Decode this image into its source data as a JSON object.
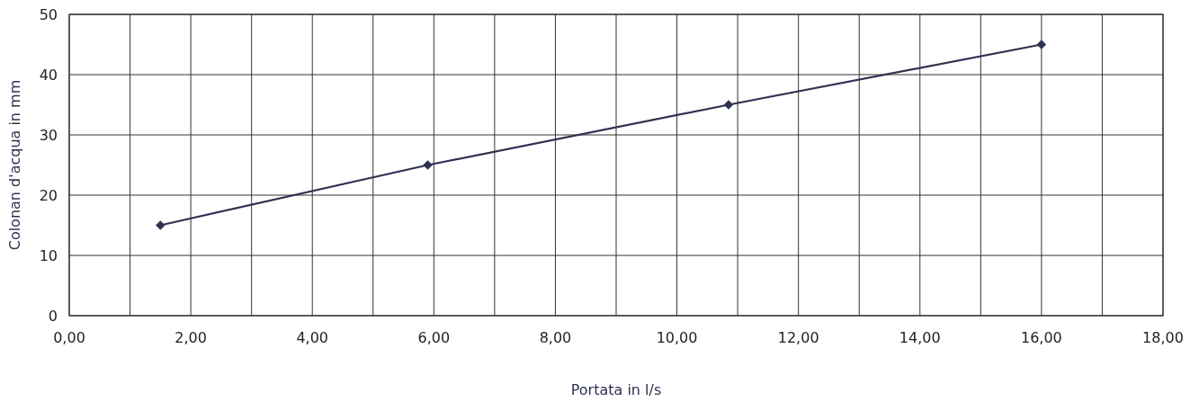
{
  "chart_data": {
    "type": "line",
    "xlabel": "Portata in l/s",
    "ylabel": "Colonan d'acqua in mm",
    "series": [
      {
        "color": "#2e3250",
        "x": [
          1.5,
          5.9,
          10.85,
          16
        ],
        "values": [
          15,
          25,
          35,
          45
        ]
      }
    ],
    "xlim": [
      0,
      18
    ],
    "ylim": [
      0,
      50
    ],
    "xticks": [
      {
        "value": 0,
        "label": "0,00"
      },
      {
        "value": 1,
        "label": null
      },
      {
        "value": 2,
        "label": "2,00"
      },
      {
        "value": 3,
        "label": null
      },
      {
        "value": 4,
        "label": "4,00"
      },
      {
        "value": 5,
        "label": null
      },
      {
        "value": 6,
        "label": "6,00"
      },
      {
        "value": 7,
        "label": null
      },
      {
        "value": 8,
        "label": "8,00"
      },
      {
        "value": 9,
        "label": null
      },
      {
        "value": 10,
        "label": "10,00"
      },
      {
        "value": 11,
        "label": null
      },
      {
        "value": 12,
        "label": "12,00"
      },
      {
        "value": 13,
        "label": null
      },
      {
        "value": 14,
        "label": "14,00"
      },
      {
        "value": 15,
        "label": null
      },
      {
        "value": 16,
        "label": "16,00"
      },
      {
        "value": 17,
        "label": null
      },
      {
        "value": 18,
        "label": "18,00"
      }
    ],
    "yticks": [
      0,
      10,
      20,
      30,
      40,
      50
    ],
    "grid": true,
    "marker": "diamond",
    "line_style": "solid"
  }
}
